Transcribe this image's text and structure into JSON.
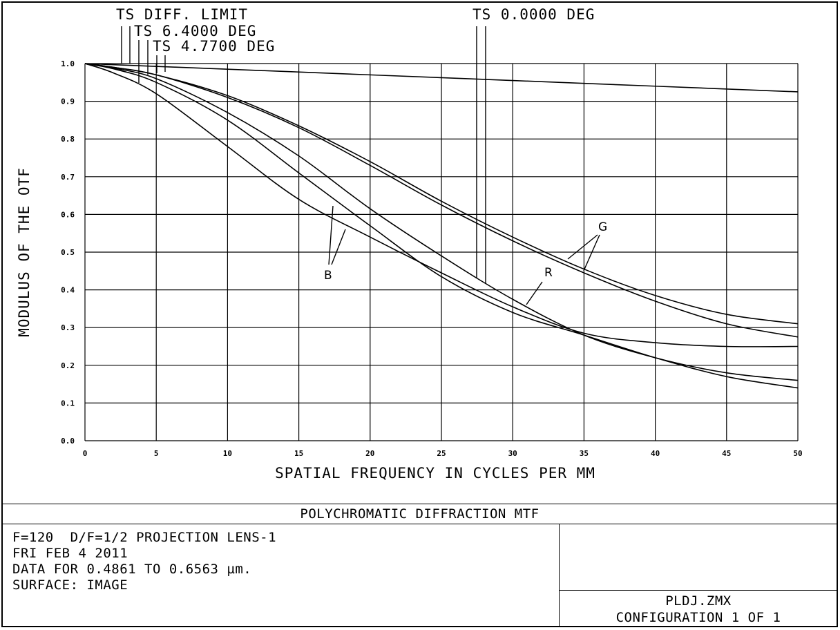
{
  "chart_data": {
    "type": "line",
    "ylabel": "MODULUS OF THE OTF",
    "xlabel": "SPATIAL FREQUENCY IN CYCLES PER MM",
    "xlim": [
      0,
      50
    ],
    "ylim": [
      0,
      1
    ],
    "x_ticks": [
      "0",
      "5",
      "10",
      "15",
      "20",
      "25",
      "30",
      "35",
      "40",
      "45",
      "50"
    ],
    "y_ticks": [
      "0.0",
      "0.1",
      "0.2",
      "0.3",
      "0.4",
      "0.5",
      "0.6",
      "0.7",
      "0.8",
      "0.9",
      "1.0"
    ],
    "grid": true,
    "legend_entries": [
      "TS DIFF. LIMIT",
      "TS 6.4000 DEG",
      "TS 4.7700 DEG",
      "TS 0.0000 DEG"
    ],
    "curve_labels": [
      "B",
      "R",
      "G"
    ],
    "series": [
      {
        "name": "TS DIFF. LIMIT",
        "x": [
          0,
          10,
          20,
          30,
          40,
          50
        ],
        "y": [
          1.0,
          0.985,
          0.97,
          0.955,
          0.94,
          0.925
        ]
      },
      {
        "x": [
          0,
          2,
          5,
          10,
          15,
          20,
          25,
          30,
          35,
          40,
          45,
          50
        ],
        "y": [
          1.0,
          0.99,
          0.97,
          0.915,
          0.835,
          0.74,
          0.635,
          0.54,
          0.455,
          0.385,
          0.335,
          0.31
        ]
      },
      {
        "x": [
          0,
          2,
          5,
          10,
          15,
          20,
          25,
          30,
          35,
          40,
          45,
          50
        ],
        "y": [
          1.0,
          0.99,
          0.97,
          0.91,
          0.83,
          0.73,
          0.625,
          0.53,
          0.445,
          0.37,
          0.31,
          0.275
        ]
      },
      {
        "x": [
          0,
          2,
          5,
          10,
          15,
          20,
          25,
          30,
          35,
          40,
          45,
          50
        ],
        "y": [
          1.0,
          0.988,
          0.96,
          0.87,
          0.755,
          0.615,
          0.49,
          0.375,
          0.28,
          0.22,
          0.18,
          0.16
        ]
      },
      {
        "x": [
          0,
          2,
          5,
          10,
          15,
          20,
          25,
          30,
          35,
          40,
          45,
          50
        ],
        "y": [
          1.0,
          0.986,
          0.95,
          0.85,
          0.71,
          0.57,
          0.435,
          0.34,
          0.28,
          0.22,
          0.17,
          0.14
        ]
      },
      {
        "x": [
          0,
          2,
          5,
          10,
          15,
          20,
          25,
          30,
          35,
          40,
          45,
          50
        ],
        "y": [
          1.0,
          0.975,
          0.92,
          0.78,
          0.64,
          0.54,
          0.445,
          0.355,
          0.285,
          0.26,
          0.25,
          0.25
        ]
      }
    ]
  },
  "footer": {
    "title": "POLYCHROMATIC DIFFRACTION MTF",
    "info": [
      "F=120  D/F=1/2 PROJECTION LENS-1",
      "FRI FEB 4 2011",
      "DATA FOR 0.4861 TO 0.6563 µm.",
      "SURFACE: IMAGE"
    ],
    "file": "PLDJ.ZMX",
    "config": "CONFIGURATION 1 OF 1"
  }
}
